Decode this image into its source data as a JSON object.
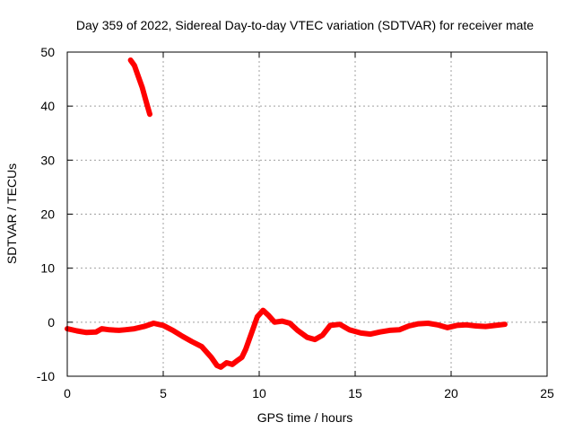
{
  "chart_data": {
    "type": "line",
    "title": "Day 359 of 2022, Sidereal Day-to-day VTEC variation (SDTVAR) for receiver mate",
    "xlabel": "GPS time / hours",
    "ylabel": "SDTVAR / TECUs",
    "xlim": [
      0,
      25
    ],
    "ylim": [
      -10,
      50
    ],
    "xticks": [
      "0",
      "5",
      "10",
      "15",
      "20",
      "25"
    ],
    "yticks": [
      "-10",
      "0",
      "10",
      "20",
      "30",
      "40",
      "50"
    ],
    "grid": true,
    "series": [
      {
        "name": "SDTVAR segment 1",
        "color": "#ff0000",
        "points": [
          [
            3.3,
            48.5
          ],
          [
            3.5,
            47.5
          ],
          [
            3.7,
            45.5
          ],
          [
            3.9,
            43.5
          ],
          [
            4.1,
            41
          ],
          [
            4.3,
            38.5
          ]
        ]
      },
      {
        "name": "SDTVAR segment 2",
        "color": "#ff0000",
        "points": [
          [
            0.0,
            -1.2
          ],
          [
            0.5,
            -1.6
          ],
          [
            1.0,
            -1.9
          ],
          [
            1.5,
            -1.8
          ],
          [
            1.8,
            -1.2
          ],
          [
            2.2,
            -1.4
          ],
          [
            2.7,
            -1.5
          ],
          [
            3.0,
            -1.4
          ],
          [
            3.5,
            -1.2
          ],
          [
            4.0,
            -0.8
          ],
          [
            4.5,
            -0.2
          ],
          [
            5.0,
            -0.6
          ],
          [
            5.5,
            -1.5
          ],
          [
            6.0,
            -2.6
          ],
          [
            6.5,
            -3.6
          ],
          [
            7.0,
            -4.5
          ],
          [
            7.5,
            -6.5
          ],
          [
            7.8,
            -8.0
          ],
          [
            8.0,
            -8.3
          ],
          [
            8.3,
            -7.5
          ],
          [
            8.6,
            -7.8
          ],
          [
            8.9,
            -7.0
          ],
          [
            9.1,
            -6.5
          ],
          [
            9.3,
            -5.0
          ],
          [
            9.5,
            -3.0
          ],
          [
            9.7,
            -1.0
          ],
          [
            9.9,
            1.0
          ],
          [
            10.2,
            2.2
          ],
          [
            10.5,
            1.2
          ],
          [
            10.8,
            0.0
          ],
          [
            11.2,
            0.2
          ],
          [
            11.6,
            -0.2
          ],
          [
            12.0,
            -1.5
          ],
          [
            12.5,
            -2.8
          ],
          [
            12.9,
            -3.2
          ],
          [
            13.3,
            -2.4
          ],
          [
            13.7,
            -0.6
          ],
          [
            14.2,
            -0.4
          ],
          [
            14.7,
            -1.4
          ],
          [
            15.3,
            -2.0
          ],
          [
            15.8,
            -2.2
          ],
          [
            16.3,
            -1.8
          ],
          [
            16.8,
            -1.5
          ],
          [
            17.3,
            -1.4
          ],
          [
            17.8,
            -0.7
          ],
          [
            18.3,
            -0.3
          ],
          [
            18.8,
            -0.2
          ],
          [
            19.3,
            -0.5
          ],
          [
            19.8,
            -1.0
          ],
          [
            20.3,
            -0.6
          ],
          [
            20.8,
            -0.5
          ],
          [
            21.3,
            -0.7
          ],
          [
            21.8,
            -0.8
          ],
          [
            22.3,
            -0.6
          ],
          [
            22.8,
            -0.4
          ]
        ]
      }
    ]
  }
}
